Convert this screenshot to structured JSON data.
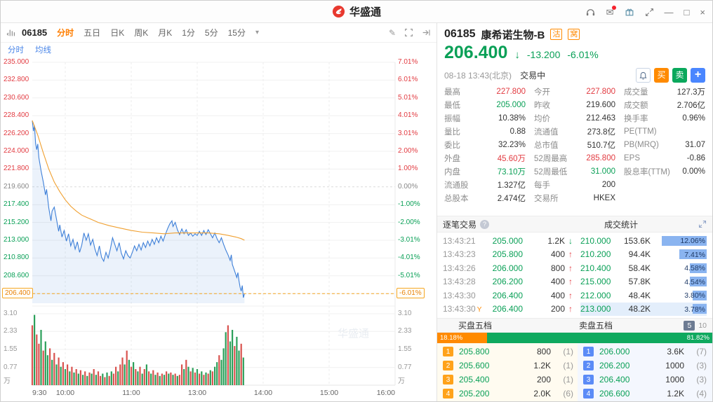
{
  "titlebar": {
    "app_name": "华盛通"
  },
  "glyphs": {
    "caret_down": "▾",
    "minimize": "—",
    "maximize": "□",
    "close": "×",
    "pencil": "✎",
    "mail": "✉",
    "up": "↑",
    "down": "↓",
    "help": "?"
  },
  "colors": {
    "red": "#e23b41",
    "green": "#0aa057",
    "orange": "#ff8a00",
    "blue": "#4a86e8",
    "line_blue": "#3d7fd8",
    "avg_orange": "#f0a030"
  },
  "chart_toolbar": {
    "code": "06185",
    "tabs": [
      "分时",
      "五日",
      "日K",
      "周K",
      "月K",
      "1分",
      "5分",
      "15分"
    ],
    "active_tab": "分时"
  },
  "chart_subtabs": [
    "分时",
    "均线"
  ],
  "chart": {
    "y_axis_prices": [
      "235.000",
      "232.800",
      "230.600",
      "228.400",
      "226.200",
      "224.000",
      "221.800",
      "219.600",
      "217.400",
      "215.200",
      "213.000",
      "210.800",
      "208.600",
      "206.400"
    ],
    "y_axis_pcts": [
      "7.01%",
      "6.01%",
      "5.01%",
      "4.01%",
      "3.01%",
      "2.00%",
      "1.00%",
      "0.00%",
      "-1.00%",
      "-2.00%",
      "-3.01%",
      "-4.01%",
      "-5.01%",
      "-6.01%"
    ],
    "current_price_label": "206.400",
    "current_pct_label": "-6.01%",
    "prev_close": 219.6,
    "vol_axis": [
      "3.10",
      "2.33",
      "1.55",
      "0.77"
    ],
    "vol_unit": "万",
    "x_labels": [
      {
        "t": "9:30",
        "m": 0
      },
      {
        "t": "10:00",
        "m": 30
      },
      {
        "t": "11:00",
        "m": 90
      },
      {
        "t": "13:00",
        "m": 150
      },
      {
        "t": "14:00",
        "m": 210
      },
      {
        "t": "15:00",
        "m": 270
      },
      {
        "t": "16:00",
        "m": 330
      }
    ],
    "line": [
      [
        0,
        227.8
      ],
      [
        1,
        226.5
      ],
      [
        2,
        227.2
      ],
      [
        3,
        225.0
      ],
      [
        4,
        224.2
      ],
      [
        5,
        224.9
      ],
      [
        6,
        223.2
      ],
      [
        8,
        221.6
      ],
      [
        10,
        220.2
      ],
      [
        12,
        218.6
      ],
      [
        13,
        219.3
      ],
      [
        15,
        217.0
      ],
      [
        17,
        215.4
      ],
      [
        18,
        216.6
      ],
      [
        20,
        217.1
      ],
      [
        22,
        215.6
      ],
      [
        24,
        214.1
      ],
      [
        25,
        214.9
      ],
      [
        27,
        213.4
      ],
      [
        29,
        214.2
      ],
      [
        31,
        212.9
      ],
      [
        33,
        213.8
      ],
      [
        35,
        212.3
      ],
      [
        37,
        213.1
      ],
      [
        39,
        211.9
      ],
      [
        41,
        212.8
      ],
      [
        43,
        211.5
      ],
      [
        45,
        212.4
      ],
      [
        47,
        213.9
      ],
      [
        49,
        213.0
      ],
      [
        51,
        213.8
      ],
      [
        53,
        212.4
      ],
      [
        55,
        213.1
      ],
      [
        57,
        211.9
      ],
      [
        59,
        211.1
      ],
      [
        61,
        212.3
      ],
      [
        63,
        210.9
      ],
      [
        65,
        210.4
      ],
      [
        67,
        211.5
      ],
      [
        69,
        210.8
      ],
      [
        71,
        211.9
      ],
      [
        73,
        213.3
      ],
      [
        75,
        212.5
      ],
      [
        77,
        211.7
      ],
      [
        79,
        212.7
      ],
      [
        81,
        211.4
      ],
      [
        83,
        210.7
      ],
      [
        85,
        211.7
      ],
      [
        87,
        211.1
      ],
      [
        89,
        210.8
      ],
      [
        91,
        211.5
      ],
      [
        93,
        212.3
      ],
      [
        95,
        211.7
      ],
      [
        97,
        212.5
      ],
      [
        99,
        211.8
      ],
      [
        101,
        212.7
      ],
      [
        103,
        212.1
      ],
      [
        105,
        212.9
      ],
      [
        107,
        212.3
      ],
      [
        109,
        213.1
      ],
      [
        111,
        212.5
      ],
      [
        113,
        213.3
      ],
      [
        115,
        212.7
      ],
      [
        117,
        213.5
      ],
      [
        119,
        212.9
      ],
      [
        121,
        213.7
      ],
      [
        123,
        214.4
      ],
      [
        125,
        215.0
      ],
      [
        127,
        215.4
      ],
      [
        128,
        214.7
      ],
      [
        130,
        215.2
      ],
      [
        132,
        214.3
      ],
      [
        134,
        213.7
      ],
      [
        136,
        214.4
      ],
      [
        138,
        213.8
      ],
      [
        140,
        214.3
      ],
      [
        142,
        213.6
      ],
      [
        144,
        213.9
      ],
      [
        146,
        213.5
      ],
      [
        148,
        213.8
      ],
      [
        150,
        213.6
      ],
      [
        152,
        214.1
      ],
      [
        154,
        213.6
      ],
      [
        156,
        214.2
      ],
      [
        158,
        213.7
      ],
      [
        160,
        214.3
      ],
      [
        162,
        213.8
      ],
      [
        164,
        213.3
      ],
      [
        166,
        213.9
      ],
      [
        168,
        213.2
      ],
      [
        170,
        212.7
      ],
      [
        172,
        213.3
      ],
      [
        174,
        212.5
      ],
      [
        176,
        211.8
      ],
      [
        178,
        211.2
      ],
      [
        180,
        210.5
      ],
      [
        181,
        211.2
      ],
      [
        182,
        210.0
      ],
      [
        184,
        209.2
      ],
      [
        186,
        208.4
      ],
      [
        187,
        209.0
      ],
      [
        188,
        208.0
      ],
      [
        189,
        207.2
      ],
      [
        190,
        206.7
      ],
      [
        191,
        207.4
      ],
      [
        192,
        205.9
      ],
      [
        193,
        206.4
      ]
    ],
    "avg": [
      [
        0,
        227.8
      ],
      [
        5,
        226.0
      ],
      [
        10,
        223.8
      ],
      [
        15,
        221.8
      ],
      [
        20,
        220.2
      ],
      [
        25,
        219.0
      ],
      [
        30,
        218.0
      ],
      [
        35,
        217.2
      ],
      [
        40,
        216.6
      ],
      [
        45,
        216.1
      ],
      [
        50,
        215.8
      ],
      [
        55,
        215.5
      ],
      [
        60,
        215.2
      ],
      [
        70,
        214.8
      ],
      [
        80,
        214.5
      ],
      [
        90,
        214.2
      ],
      [
        100,
        214.0
      ],
      [
        110,
        213.9
      ],
      [
        120,
        213.8
      ],
      [
        130,
        213.9
      ],
      [
        145,
        213.9
      ],
      [
        160,
        213.9
      ],
      [
        170,
        213.8
      ],
      [
        178,
        213.6
      ],
      [
        185,
        213.4
      ],
      [
        190,
        213.2
      ],
      [
        193,
        213.0
      ]
    ],
    "vol": [
      [
        2.6,
        "r"
      ],
      [
        3.05,
        "g"
      ],
      [
        2.2,
        "r"
      ],
      [
        1.8,
        "r"
      ],
      [
        2.4,
        "g"
      ],
      [
        1.5,
        "r"
      ],
      [
        1.9,
        "g"
      ],
      [
        1.3,
        "g"
      ],
      [
        1.6,
        "r"
      ],
      [
        1.1,
        "g"
      ],
      [
        1.4,
        "r"
      ],
      [
        0.9,
        "g"
      ],
      [
        1.2,
        "r"
      ],
      [
        0.8,
        "g"
      ],
      [
        1.0,
        "r"
      ],
      [
        0.7,
        "g"
      ],
      [
        0.9,
        "r"
      ],
      [
        0.6,
        "g"
      ],
      [
        0.8,
        "r"
      ],
      [
        0.55,
        "g"
      ],
      [
        0.7,
        "r"
      ],
      [
        0.5,
        "g"
      ],
      [
        0.65,
        "r"
      ],
      [
        0.45,
        "g"
      ],
      [
        0.6,
        "r"
      ],
      [
        0.4,
        "g"
      ],
      [
        0.55,
        "r"
      ],
      [
        0.5,
        "g"
      ],
      [
        0.7,
        "r"
      ],
      [
        0.45,
        "g"
      ],
      [
        0.6,
        "r"
      ],
      [
        0.4,
        "r"
      ],
      [
        0.5,
        "g"
      ],
      [
        0.35,
        "r"
      ],
      [
        0.55,
        "g"
      ],
      [
        0.4,
        "r"
      ],
      [
        0.6,
        "g"
      ],
      [
        0.5,
        "r"
      ],
      [
        0.8,
        "r"
      ],
      [
        0.6,
        "g"
      ],
      [
        0.9,
        "r"
      ],
      [
        1.2,
        "r"
      ],
      [
        0.9,
        "g"
      ],
      [
        1.5,
        "r"
      ],
      [
        1.1,
        "g"
      ],
      [
        0.8,
        "r"
      ],
      [
        1.0,
        "g"
      ],
      [
        0.7,
        "r"
      ],
      [
        0.6,
        "g"
      ],
      [
        0.8,
        "r"
      ],
      [
        0.5,
        "g"
      ],
      [
        0.7,
        "r"
      ],
      [
        0.9,
        "g"
      ],
      [
        0.6,
        "r"
      ],
      [
        0.5,
        "g"
      ],
      [
        0.65,
        "r"
      ],
      [
        0.45,
        "g"
      ],
      [
        0.55,
        "r"
      ],
      [
        0.4,
        "g"
      ],
      [
        0.5,
        "r"
      ],
      [
        0.45,
        "g"
      ],
      [
        0.6,
        "r"
      ],
      [
        0.5,
        "g"
      ],
      [
        0.55,
        "r"
      ],
      [
        0.45,
        "g"
      ],
      [
        0.5,
        "r"
      ],
      [
        0.4,
        "g"
      ],
      [
        0.45,
        "r"
      ],
      [
        0.9,
        "r"
      ],
      [
        0.7,
        "g"
      ],
      [
        1.1,
        "r"
      ],
      [
        0.8,
        "g"
      ],
      [
        0.6,
        "r"
      ],
      [
        0.75,
        "g"
      ],
      [
        0.55,
        "r"
      ],
      [
        0.7,
        "g"
      ],
      [
        0.5,
        "r"
      ],
      [
        0.6,
        "g"
      ],
      [
        0.45,
        "r"
      ],
      [
        0.55,
        "g"
      ],
      [
        0.5,
        "r"
      ],
      [
        0.65,
        "g"
      ],
      [
        0.6,
        "r"
      ],
      [
        0.8,
        "g"
      ],
      [
        1.0,
        "g"
      ],
      [
        1.3,
        "r"
      ],
      [
        1.1,
        "g"
      ],
      [
        1.6,
        "g"
      ],
      [
        2.3,
        "g"
      ],
      [
        2.6,
        "r"
      ],
      [
        1.9,
        "g"
      ],
      [
        2.4,
        "g"
      ],
      [
        1.7,
        "r"
      ],
      [
        2.1,
        "g"
      ],
      [
        1.5,
        "g"
      ],
      [
        1.8,
        "r"
      ],
      [
        1.2,
        "g"
      ]
    ]
  },
  "quote": {
    "code": "06185",
    "name": "康希诺生物-B",
    "badges": [
      "沽",
      "窝"
    ],
    "price": "206.400",
    "change": "-13.200",
    "change_pct": "-6.01%",
    "datetime": "08-18 13:43(北京)",
    "status": "交易中",
    "buy_label": "买",
    "sell_label": "卖",
    "add_label": "+"
  },
  "stats": [
    [
      {
        "l": "最高",
        "v": "227.800",
        "c": "red"
      },
      {
        "l": "今开",
        "v": "227.800",
        "c": "red"
      },
      {
        "l": "成交量",
        "v": "127.3万",
        "c": "dark"
      }
    ],
    [
      {
        "l": "最低",
        "v": "205.000",
        "c": "green"
      },
      {
        "l": "昨收",
        "v": "219.600",
        "c": "dark"
      },
      {
        "l": "成交额",
        "v": "2.706亿",
        "c": "dark"
      }
    ],
    [
      {
        "l": "振幅",
        "v": "10.38%",
        "c": "dark"
      },
      {
        "l": "均价",
        "v": "212.463",
        "c": "dark"
      },
      {
        "l": "换手率",
        "v": "0.96%",
        "c": "dark"
      }
    ],
    [
      {
        "l": "量比",
        "v": "0.88",
        "c": "dark"
      },
      {
        "l": "流通值",
        "v": "273.8亿",
        "c": "dark"
      },
      {
        "l": "PE(TTM)",
        "v": "",
        "c": "dark"
      }
    ],
    [
      {
        "l": "委比",
        "v": "32.23%",
        "c": "dark"
      },
      {
        "l": "总市值",
        "v": "510.7亿",
        "c": "dark"
      },
      {
        "l": "PB(MRQ)",
        "v": "31.07",
        "c": "dark"
      }
    ],
    [
      {
        "l": "外盘",
        "v": "45.60万",
        "c": "red"
      },
      {
        "l": "52周最高",
        "v": "285.800",
        "c": "red"
      },
      {
        "l": "EPS",
        "v": "-0.86",
        "c": "dark"
      }
    ],
    [
      {
        "l": "内盘",
        "v": "73.10万",
        "c": "green"
      },
      {
        "l": "52周最低",
        "v": "31.000",
        "c": "green"
      },
      {
        "l": "股息率(TTM)",
        "v": "0.00%",
        "c": "dark"
      }
    ],
    [
      {
        "l": "流通股",
        "v": "1.327亿",
        "c": "dark"
      },
      {
        "l": "每手",
        "v": "200",
        "c": "dark"
      },
      {
        "l": "",
        "v": "",
        "c": "dark"
      }
    ],
    [
      {
        "l": "总股本",
        "v": "2.474亿",
        "c": "dark"
      },
      {
        "l": "交易所",
        "v": "HKEX",
        "c": "dark"
      },
      {
        "l": "",
        "v": "",
        "c": "dark"
      }
    ]
  ],
  "ticker": {
    "title": "逐笔交易",
    "stats_title": "成交统计",
    "ticks": [
      {
        "time": "13:43:21",
        "price": "205.000",
        "qty": "1.2K",
        "dir": "down"
      },
      {
        "time": "13:43:23",
        "price": "205.800",
        "qty": "400",
        "dir": "up"
      },
      {
        "time": "13:43:26",
        "price": "206.000",
        "qty": "800",
        "dir": "up"
      },
      {
        "time": "13:43:28",
        "price": "206.200",
        "qty": "400",
        "dir": "up"
      },
      {
        "time": "13:43:30",
        "price": "206.400",
        "qty": "400",
        "dir": "up"
      },
      {
        "time": "13:43:30",
        "flag": "Y",
        "price": "206.400",
        "qty": "200",
        "dir": "up"
      }
    ],
    "stats": [
      {
        "price": "210.000",
        "vol": "153.6K",
        "pct": "12.06%",
        "p": 12.06
      },
      {
        "price": "210.200",
        "vol": "94.4K",
        "pct": "7.41%",
        "p": 7.41
      },
      {
        "price": "210.400",
        "vol": "58.4K",
        "pct": "4.58%",
        "p": 4.58
      },
      {
        "price": "215.000",
        "vol": "57.8K",
        "pct": "4.54%",
        "p": 4.54
      },
      {
        "price": "212.000",
        "vol": "48.4K",
        "pct": "3.80%",
        "p": 3.8
      },
      {
        "price": "213.000",
        "vol": "48.2K",
        "pct": "3.78%",
        "p": 3.78
      }
    ]
  },
  "depth": {
    "bid_title": "买盘五档",
    "ask_title": "卖盘五档",
    "level5": "5",
    "level10": "10",
    "buy_ratio": "18.18%",
    "sell_ratio": "81.82%",
    "buy_ratio_pct": 18.18,
    "bids": [
      {
        "rank": "1",
        "price": "205.800",
        "vol": "800",
        "count": "(1)"
      },
      {
        "rank": "2",
        "price": "205.600",
        "vol": "1.2K",
        "count": "(1)"
      },
      {
        "rank": "3",
        "price": "205.400",
        "vol": "200",
        "count": "(1)"
      },
      {
        "rank": "4",
        "price": "205.200",
        "vol": "2.0K",
        "count": "(6)"
      }
    ],
    "asks": [
      {
        "rank": "1",
        "price": "206.000",
        "vol": "3.6K",
        "count": "(7)"
      },
      {
        "rank": "2",
        "price": "206.200",
        "vol": "1000",
        "count": "(3)"
      },
      {
        "rank": "3",
        "price": "206.400",
        "vol": "1000",
        "count": "(3)"
      },
      {
        "rank": "4",
        "price": "206.600",
        "vol": "1.2K",
        "count": "(4)"
      }
    ]
  }
}
